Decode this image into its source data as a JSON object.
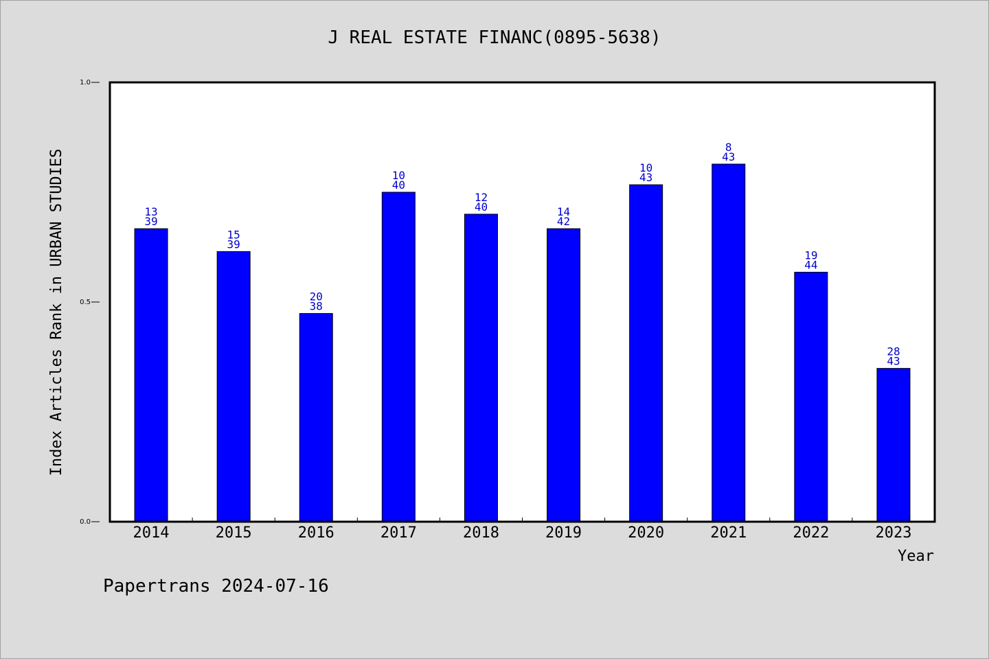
{
  "chart_data": {
    "type": "bar",
    "title": "J REAL ESTATE FINANC(0895-5638)",
    "xlabel": "Year",
    "ylabel": "Index Articles Rank in URBAN STUDIES",
    "ylim": [
      0,
      1.0
    ],
    "yticks": [
      "0.0",
      "0.5",
      "1.0"
    ],
    "categories": [
      "2014",
      "2015",
      "2016",
      "2017",
      "2018",
      "2019",
      "2020",
      "2021",
      "2022",
      "2023"
    ],
    "values": [
      0.667,
      0.615,
      0.474,
      0.75,
      0.7,
      0.667,
      0.767,
      0.814,
      0.568,
      0.349
    ],
    "ranks": [
      "13",
      "15",
      "20",
      "10",
      "12",
      "14",
      "10",
      "8",
      "19",
      "28"
    ],
    "totals": [
      "39",
      "39",
      "38",
      "40",
      "40",
      "42",
      "43",
      "43",
      "44",
      "43"
    ],
    "bar_color": "#0000ff",
    "label_color": "#0000cc",
    "grid": false
  },
  "footer": "Papertrans 2024-07-16"
}
